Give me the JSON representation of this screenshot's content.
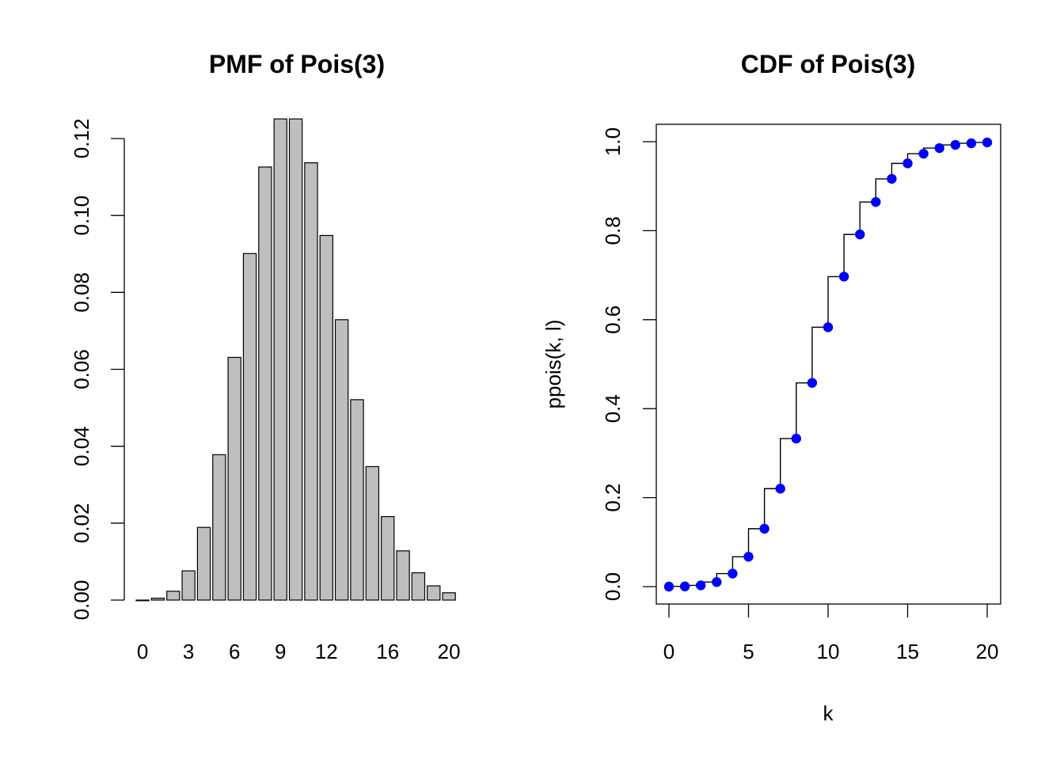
{
  "chart_data": [
    {
      "type": "bar",
      "title": "PMF of Pois(3)",
      "xlabel": "",
      "ylabel": "",
      "categories": [
        "0",
        "1",
        "2",
        "3",
        "4",
        "5",
        "6",
        "7",
        "8",
        "9",
        "10",
        "11",
        "12",
        "13",
        "14",
        "15",
        "16",
        "17",
        "18",
        "19",
        "20"
      ],
      "x_tick_labels": [
        "0",
        "3",
        "6",
        "9",
        "12",
        "16",
        "20"
      ],
      "x_tick_categories": [
        0,
        3,
        6,
        9,
        12,
        16,
        20
      ],
      "values": [
        0.0,
        0.0005,
        0.0023,
        0.0076,
        0.0189,
        0.0378,
        0.0631,
        0.0901,
        0.1126,
        0.1251,
        0.1251,
        0.1137,
        0.0948,
        0.0729,
        0.0521,
        0.0347,
        0.0217,
        0.0128,
        0.0071,
        0.0037,
        0.0019
      ],
      "ylim": [
        0,
        0.125
      ],
      "y_ticks": [
        0.0,
        0.02,
        0.04,
        0.06,
        0.08,
        0.1,
        0.12
      ],
      "y_tick_labels": [
        "0.00",
        "0.02",
        "0.04",
        "0.06",
        "0.08",
        "0.10",
        "0.12"
      ],
      "bar_color": "#bebebe",
      "grid": false
    },
    {
      "type": "line",
      "title": "CDF of Pois(3)",
      "xlabel": "k",
      "ylabel": "ppois(k, l)",
      "x": [
        0,
        1,
        2,
        3,
        4,
        5,
        6,
        7,
        8,
        9,
        10,
        11,
        12,
        13,
        14,
        15,
        16,
        17,
        18,
        19,
        20
      ],
      "y": [
        0.0,
        0.0005,
        0.0028,
        0.0103,
        0.0293,
        0.0671,
        0.1301,
        0.2202,
        0.3328,
        0.4579,
        0.583,
        0.6968,
        0.7916,
        0.8645,
        0.9165,
        0.9513,
        0.973,
        0.9857,
        0.9928,
        0.9965,
        0.9984
      ],
      "xlim": [
        -0.8,
        20.8
      ],
      "ylim": [
        -0.04,
        1.04
      ],
      "x_ticks": [
        0,
        5,
        10,
        15,
        20
      ],
      "x_tick_labels": [
        "0",
        "5",
        "10",
        "15",
        "20"
      ],
      "y_ticks": [
        0.0,
        0.2,
        0.4,
        0.6,
        0.8,
        1.0
      ],
      "y_tick_labels": [
        "0.0",
        "0.2",
        "0.4",
        "0.6",
        "0.8",
        "1.0"
      ],
      "point_color": "#0000ff",
      "step_color": "#000000",
      "grid": false
    }
  ]
}
